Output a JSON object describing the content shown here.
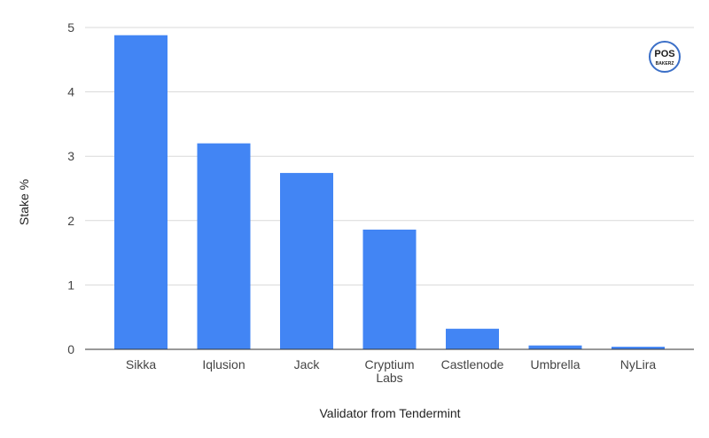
{
  "chart_data": {
    "type": "bar",
    "title": "",
    "xlabel": "Validator from Tendermint",
    "ylabel": "Stake %",
    "categories": [
      "Sikka",
      "Iqlusion",
      "Jack",
      "Cryptium Labs",
      "Castlenode",
      "Umbrella",
      "NyLira"
    ],
    "values": [
      4.88,
      3.2,
      2.74,
      1.86,
      0.32,
      0.06,
      0.04
    ],
    "ylim": [
      0,
      5
    ],
    "yticks": [
      0,
      1,
      2,
      3,
      4,
      5
    ],
    "grid": true,
    "bar_color": "#4285f4",
    "legend": "none"
  },
  "logo": {
    "line1": "POS",
    "line2": "BAKERZ",
    "ring_color": "#3b6fc7"
  }
}
